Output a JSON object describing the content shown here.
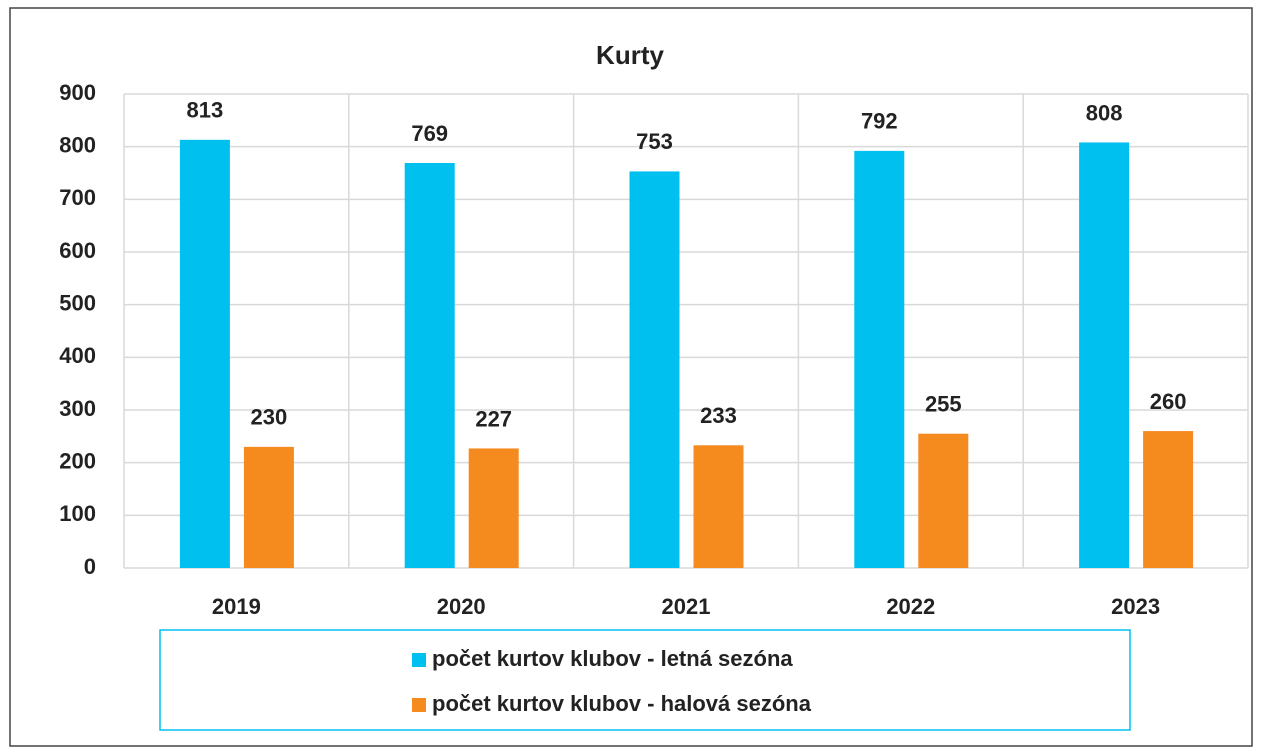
{
  "chart_data": {
    "type": "bar",
    "title": "Kurty",
    "categories": [
      "2019",
      "2020",
      "2021",
      "2022",
      "2023"
    ],
    "series": [
      {
        "name": "počet kurtov klubov - letná sezóna",
        "color": "#00c0f0",
        "values": [
          813,
          769,
          753,
          792,
          808
        ]
      },
      {
        "name": "počet kurtov klubov - halová sezóna",
        "color": "#f58a1f",
        "values": [
          230,
          227,
          233,
          255,
          260
        ]
      }
    ],
    "ylim": [
      0,
      900
    ],
    "yticks": [
      0,
      100,
      200,
      300,
      400,
      500,
      600,
      700,
      800,
      900
    ],
    "grid": true,
    "legend": "bottom"
  }
}
